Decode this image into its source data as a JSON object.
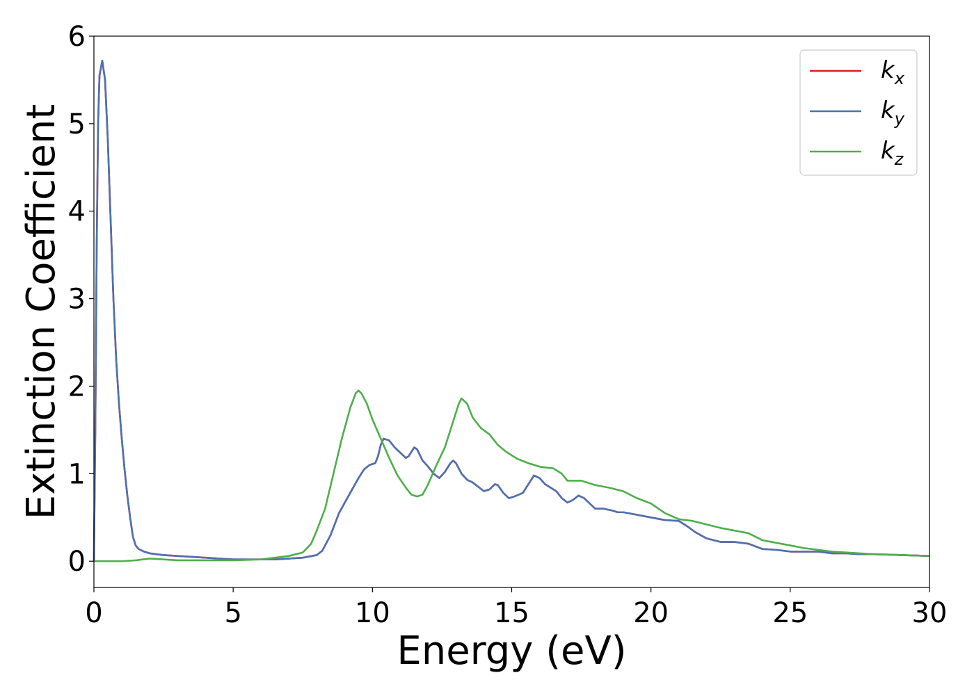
{
  "chart_data": {
    "type": "line",
    "title": "",
    "xlabel": "Energy (eV)",
    "ylabel": "Extinction Coefficient",
    "xlim": [
      0,
      30
    ],
    "ylim": [
      -0.3,
      6
    ],
    "xticks": [
      0,
      5,
      10,
      15,
      20,
      25,
      30
    ],
    "yticks": [
      0,
      1,
      2,
      3,
      4,
      5,
      6
    ],
    "grid": false,
    "legend_position": "top-right",
    "series": [
      {
        "name": "k_x",
        "label_base": "k",
        "label_sub": "x",
        "color": "#e41a1c",
        "points": [
          [
            0,
            0
          ],
          [
            0.05,
            1.5
          ],
          [
            0.1,
            3.6
          ],
          [
            0.15,
            5.0
          ],
          [
            0.2,
            5.55
          ],
          [
            0.3,
            5.72
          ],
          [
            0.4,
            5.5
          ],
          [
            0.5,
            4.8
          ],
          [
            0.6,
            3.9
          ],
          [
            0.7,
            3.0
          ],
          [
            0.8,
            2.3
          ],
          [
            0.9,
            1.8
          ],
          [
            1.0,
            1.4
          ],
          [
            1.1,
            1.05
          ],
          [
            1.2,
            0.75
          ],
          [
            1.3,
            0.5
          ],
          [
            1.4,
            0.28
          ],
          [
            1.5,
            0.18
          ],
          [
            1.6,
            0.14
          ],
          [
            1.8,
            0.11
          ],
          [
            2.0,
            0.09
          ],
          [
            2.5,
            0.07
          ],
          [
            3.0,
            0.06
          ],
          [
            3.5,
            0.05
          ],
          [
            4.0,
            0.04
          ],
          [
            4.5,
            0.03
          ],
          [
            5.0,
            0.02
          ],
          [
            5.5,
            0.02
          ],
          [
            6.0,
            0.02
          ],
          [
            6.5,
            0.02
          ],
          [
            7.0,
            0.03
          ],
          [
            7.5,
            0.04
          ],
          [
            8.0,
            0.07
          ],
          [
            8.2,
            0.12
          ],
          [
            8.5,
            0.3
          ],
          [
            8.8,
            0.55
          ],
          [
            9.2,
            0.78
          ],
          [
            9.5,
            0.95
          ],
          [
            9.7,
            1.05
          ],
          [
            9.9,
            1.1
          ],
          [
            10.1,
            1.12
          ],
          [
            10.2,
            1.2
          ],
          [
            10.3,
            1.33
          ],
          [
            10.4,
            1.4
          ],
          [
            10.6,
            1.38
          ],
          [
            10.8,
            1.3
          ],
          [
            11.0,
            1.24
          ],
          [
            11.2,
            1.18
          ],
          [
            11.3,
            1.2
          ],
          [
            11.5,
            1.3
          ],
          [
            11.6,
            1.28
          ],
          [
            11.8,
            1.15
          ],
          [
            12.0,
            1.08
          ],
          [
            12.2,
            1.0
          ],
          [
            12.4,
            0.95
          ],
          [
            12.6,
            1.02
          ],
          [
            12.8,
            1.12
          ],
          [
            12.9,
            1.15
          ],
          [
            13.0,
            1.12
          ],
          [
            13.2,
            1.0
          ],
          [
            13.4,
            0.93
          ],
          [
            13.6,
            0.9
          ],
          [
            13.8,
            0.85
          ],
          [
            14.0,
            0.8
          ],
          [
            14.2,
            0.82
          ],
          [
            14.4,
            0.88
          ],
          [
            14.5,
            0.87
          ],
          [
            14.7,
            0.78
          ],
          [
            14.9,
            0.72
          ],
          [
            15.1,
            0.74
          ],
          [
            15.4,
            0.78
          ],
          [
            15.6,
            0.88
          ],
          [
            15.8,
            0.98
          ],
          [
            16.0,
            0.95
          ],
          [
            16.2,
            0.88
          ],
          [
            16.4,
            0.84
          ],
          [
            16.6,
            0.8
          ],
          [
            16.8,
            0.72
          ],
          [
            17.0,
            0.67
          ],
          [
            17.2,
            0.7
          ],
          [
            17.4,
            0.75
          ],
          [
            17.6,
            0.72
          ],
          [
            17.8,
            0.66
          ],
          [
            18.0,
            0.6
          ],
          [
            18.3,
            0.6
          ],
          [
            18.6,
            0.58
          ],
          [
            18.8,
            0.56
          ],
          [
            19.0,
            0.56
          ],
          [
            19.5,
            0.53
          ],
          [
            20.0,
            0.5
          ],
          [
            20.5,
            0.47
          ],
          [
            21.0,
            0.46
          ],
          [
            21.3,
            0.4
          ],
          [
            21.6,
            0.33
          ],
          [
            22.0,
            0.26
          ],
          [
            22.5,
            0.22
          ],
          [
            23.0,
            0.22
          ],
          [
            23.5,
            0.2
          ],
          [
            24.0,
            0.14
          ],
          [
            24.5,
            0.13
          ],
          [
            25.0,
            0.11
          ],
          [
            25.5,
            0.11
          ],
          [
            26.0,
            0.11
          ],
          [
            26.5,
            0.09
          ],
          [
            27.0,
            0.09
          ],
          [
            27.5,
            0.08
          ],
          [
            28.0,
            0.08
          ],
          [
            29.0,
            0.07
          ],
          [
            30.0,
            0.06
          ]
        ]
      },
      {
        "name": "k_y",
        "label_base": "k",
        "label_sub": "y",
        "color": "#4c72b0",
        "points": [
          [
            0,
            0
          ],
          [
            0.05,
            1.5
          ],
          [
            0.1,
            3.6
          ],
          [
            0.15,
            5.0
          ],
          [
            0.2,
            5.55
          ],
          [
            0.3,
            5.72
          ],
          [
            0.4,
            5.5
          ],
          [
            0.5,
            4.8
          ],
          [
            0.6,
            3.9
          ],
          [
            0.7,
            3.0
          ],
          [
            0.8,
            2.3
          ],
          [
            0.9,
            1.8
          ],
          [
            1.0,
            1.4
          ],
          [
            1.1,
            1.05
          ],
          [
            1.2,
            0.75
          ],
          [
            1.3,
            0.5
          ],
          [
            1.4,
            0.28
          ],
          [
            1.5,
            0.18
          ],
          [
            1.6,
            0.14
          ],
          [
            1.8,
            0.11
          ],
          [
            2.0,
            0.09
          ],
          [
            2.5,
            0.07
          ],
          [
            3.0,
            0.06
          ],
          [
            3.5,
            0.05
          ],
          [
            4.0,
            0.04
          ],
          [
            4.5,
            0.03
          ],
          [
            5.0,
            0.02
          ],
          [
            5.5,
            0.02
          ],
          [
            6.0,
            0.02
          ],
          [
            6.5,
            0.02
          ],
          [
            7.0,
            0.03
          ],
          [
            7.5,
            0.04
          ],
          [
            8.0,
            0.07
          ],
          [
            8.2,
            0.12
          ],
          [
            8.5,
            0.3
          ],
          [
            8.8,
            0.55
          ],
          [
            9.2,
            0.78
          ],
          [
            9.5,
            0.95
          ],
          [
            9.7,
            1.05
          ],
          [
            9.9,
            1.1
          ],
          [
            10.1,
            1.12
          ],
          [
            10.2,
            1.2
          ],
          [
            10.3,
            1.33
          ],
          [
            10.4,
            1.4
          ],
          [
            10.6,
            1.38
          ],
          [
            10.8,
            1.3
          ],
          [
            11.0,
            1.24
          ],
          [
            11.2,
            1.18
          ],
          [
            11.3,
            1.2
          ],
          [
            11.5,
            1.3
          ],
          [
            11.6,
            1.28
          ],
          [
            11.8,
            1.15
          ],
          [
            12.0,
            1.08
          ],
          [
            12.2,
            1.0
          ],
          [
            12.4,
            0.95
          ],
          [
            12.6,
            1.02
          ],
          [
            12.8,
            1.12
          ],
          [
            12.9,
            1.15
          ],
          [
            13.0,
            1.12
          ],
          [
            13.2,
            1.0
          ],
          [
            13.4,
            0.93
          ],
          [
            13.6,
            0.9
          ],
          [
            13.8,
            0.85
          ],
          [
            14.0,
            0.8
          ],
          [
            14.2,
            0.82
          ],
          [
            14.4,
            0.88
          ],
          [
            14.5,
            0.87
          ],
          [
            14.7,
            0.78
          ],
          [
            14.9,
            0.72
          ],
          [
            15.1,
            0.74
          ],
          [
            15.4,
            0.78
          ],
          [
            15.6,
            0.88
          ],
          [
            15.8,
            0.98
          ],
          [
            16.0,
            0.95
          ],
          [
            16.2,
            0.88
          ],
          [
            16.4,
            0.84
          ],
          [
            16.6,
            0.8
          ],
          [
            16.8,
            0.72
          ],
          [
            17.0,
            0.67
          ],
          [
            17.2,
            0.7
          ],
          [
            17.4,
            0.75
          ],
          [
            17.6,
            0.72
          ],
          [
            17.8,
            0.66
          ],
          [
            18.0,
            0.6
          ],
          [
            18.3,
            0.6
          ],
          [
            18.6,
            0.58
          ],
          [
            18.8,
            0.56
          ],
          [
            19.0,
            0.56
          ],
          [
            19.5,
            0.53
          ],
          [
            20.0,
            0.5
          ],
          [
            20.5,
            0.47
          ],
          [
            21.0,
            0.46
          ],
          [
            21.3,
            0.4
          ],
          [
            21.6,
            0.33
          ],
          [
            22.0,
            0.26
          ],
          [
            22.5,
            0.22
          ],
          [
            23.0,
            0.22
          ],
          [
            23.5,
            0.2
          ],
          [
            24.0,
            0.14
          ],
          [
            24.5,
            0.13
          ],
          [
            25.0,
            0.11
          ],
          [
            25.5,
            0.11
          ],
          [
            26.0,
            0.11
          ],
          [
            26.5,
            0.09
          ],
          [
            27.0,
            0.09
          ],
          [
            27.5,
            0.08
          ],
          [
            28.0,
            0.08
          ],
          [
            29.0,
            0.07
          ],
          [
            30.0,
            0.06
          ]
        ]
      },
      {
        "name": "k_z",
        "label_base": "k",
        "label_sub": "z",
        "color": "#4daf4a",
        "points": [
          [
            0,
            0.0
          ],
          [
            0.5,
            0.0
          ],
          [
            1.0,
            0.0
          ],
          [
            1.5,
            0.01
          ],
          [
            2.0,
            0.03
          ],
          [
            2.5,
            0.02
          ],
          [
            3.0,
            0.01
          ],
          [
            4.0,
            0.01
          ],
          [
            5.0,
            0.01
          ],
          [
            6.0,
            0.02
          ],
          [
            6.5,
            0.04
          ],
          [
            7.0,
            0.06
          ],
          [
            7.5,
            0.1
          ],
          [
            7.8,
            0.2
          ],
          [
            8.0,
            0.35
          ],
          [
            8.3,
            0.6
          ],
          [
            8.6,
            1.0
          ],
          [
            8.9,
            1.4
          ],
          [
            9.2,
            1.75
          ],
          [
            9.4,
            1.92
          ],
          [
            9.5,
            1.95
          ],
          [
            9.6,
            1.92
          ],
          [
            9.8,
            1.8
          ],
          [
            10.0,
            1.62
          ],
          [
            10.3,
            1.4
          ],
          [
            10.6,
            1.18
          ],
          [
            10.9,
            0.98
          ],
          [
            11.2,
            0.84
          ],
          [
            11.4,
            0.76
          ],
          [
            11.6,
            0.74
          ],
          [
            11.8,
            0.76
          ],
          [
            12.0,
            0.88
          ],
          [
            12.3,
            1.1
          ],
          [
            12.6,
            1.3
          ],
          [
            12.9,
            1.6
          ],
          [
            13.1,
            1.8
          ],
          [
            13.2,
            1.86
          ],
          [
            13.4,
            1.8
          ],
          [
            13.6,
            1.64
          ],
          [
            13.9,
            1.52
          ],
          [
            14.2,
            1.45
          ],
          [
            14.5,
            1.33
          ],
          [
            14.8,
            1.25
          ],
          [
            15.2,
            1.17
          ],
          [
            15.6,
            1.12
          ],
          [
            16.0,
            1.08
          ],
          [
            16.5,
            1.06
          ],
          [
            16.8,
            1.0
          ],
          [
            17.0,
            0.92
          ],
          [
            17.5,
            0.92
          ],
          [
            18.0,
            0.87
          ],
          [
            18.5,
            0.84
          ],
          [
            19.0,
            0.8
          ],
          [
            19.5,
            0.72
          ],
          [
            20.0,
            0.66
          ],
          [
            20.5,
            0.55
          ],
          [
            21.0,
            0.48
          ],
          [
            21.5,
            0.46
          ],
          [
            22.0,
            0.42
          ],
          [
            22.5,
            0.38
          ],
          [
            23.0,
            0.35
          ],
          [
            23.5,
            0.32
          ],
          [
            24.0,
            0.24
          ],
          [
            24.5,
            0.21
          ],
          [
            25.0,
            0.18
          ],
          [
            25.5,
            0.15
          ],
          [
            26.0,
            0.13
          ],
          [
            26.5,
            0.11
          ],
          [
            27.0,
            0.1
          ],
          [
            27.5,
            0.09
          ],
          [
            28.0,
            0.08
          ],
          [
            29.0,
            0.07
          ],
          [
            30.0,
            0.06
          ]
        ]
      }
    ]
  }
}
